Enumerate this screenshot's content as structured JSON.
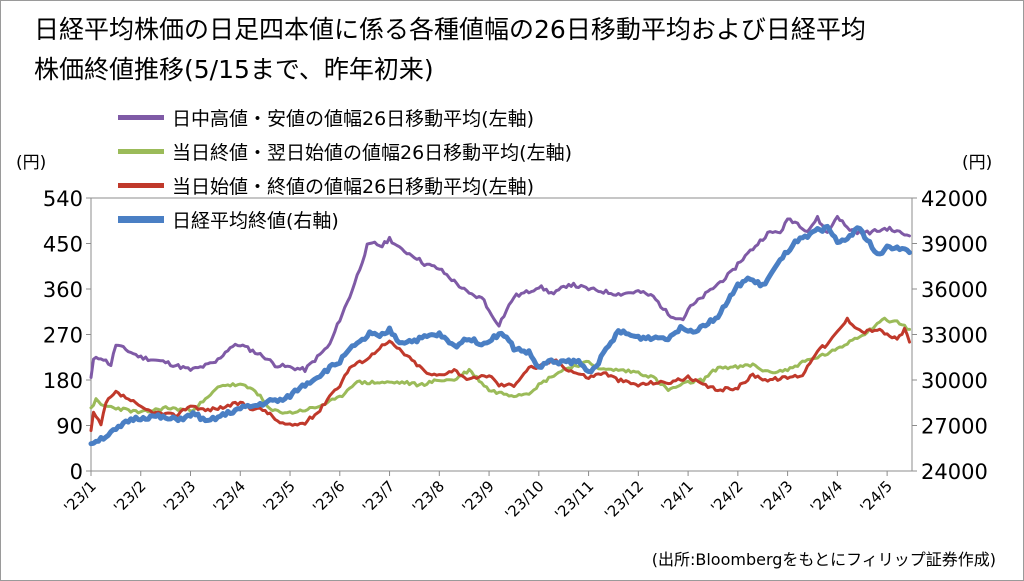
{
  "chart_data": {
    "type": "line",
    "title_line1": "日経平均株価の日足四本値に係る各種値幅の26日移動平均および日経平均",
    "title_line2": "株価終値推移(5/15まで、昨年初来)",
    "left_axis_unit": "(円)",
    "right_axis_unit": "(円)",
    "source": "(出所:Bloombergをもとにフィリップ証券作成)",
    "y_left": {
      "ticks": [
        "540",
        "450",
        "360",
        "270",
        "180",
        "90",
        "0"
      ],
      "lim": [
        0,
        540
      ]
    },
    "y_right": {
      "ticks": [
        "42000",
        "39000",
        "36000",
        "33000",
        "30000",
        "27000",
        "24000"
      ],
      "lim": [
        24000,
        42000
      ]
    },
    "x": {
      "lim": [
        1,
        17.5
      ],
      "tick_positions": [
        1,
        2,
        3,
        4,
        5,
        6,
        7,
        8,
        9,
        10,
        11,
        12,
        13,
        14,
        15,
        16,
        17
      ],
      "tick_labels": [
        "'23/1",
        "'23/2",
        "'23/3",
        "'23/4",
        "'23/5",
        "'23/6",
        "'23/7",
        "'23/8",
        "'23/9",
        "'23/10",
        "'23/11",
        "'23/12",
        "'24/1",
        "'24/2",
        "'24/3",
        "'24/4",
        "'24/5"
      ]
    },
    "grid": false,
    "legend_position": "top-left",
    "series": [
      {
        "name": "日中高値・安値の値幅26日移動平均(左軸)",
        "axis": "left",
        "color": "#7f5aa6",
        "x": [
          1.0,
          1.05,
          1.2,
          1.4,
          1.5,
          1.7,
          2.0,
          2.5,
          3.0,
          3.2,
          3.5,
          3.8,
          4.0,
          4.2,
          4.5,
          4.7,
          5.0,
          5.3,
          5.5,
          5.8,
          6.0,
          6.2,
          6.4,
          6.55,
          6.7,
          6.85,
          7.0,
          7.2,
          7.5,
          7.7,
          8.0,
          8.3,
          8.6,
          8.9,
          9.0,
          9.2,
          9.5,
          9.8,
          10.0,
          10.3,
          10.6,
          11.0,
          11.3,
          11.6,
          12.0,
          12.3,
          12.6,
          12.9,
          13.0,
          13.3,
          13.6,
          13.9,
          14.0,
          14.3,
          14.6,
          14.9,
          15.0,
          15.2,
          15.4,
          15.6,
          15.8,
          16.0,
          16.2,
          16.5,
          16.8,
          17.0,
          17.3,
          17.45
        ],
        "values": [
          185,
          220,
          225,
          210,
          250,
          240,
          225,
          215,
          200,
          205,
          215,
          245,
          250,
          240,
          225,
          210,
          205,
          200,
          220,
          250,
          300,
          345,
          400,
          445,
          450,
          445,
          460,
          440,
          425,
          410,
          400,
          375,
          350,
          340,
          315,
          290,
          345,
          355,
          365,
          350,
          370,
          360,
          355,
          350,
          355,
          345,
          310,
          300,
          320,
          345,
          370,
          395,
          410,
          440,
          470,
          475,
          500,
          490,
          475,
          500,
          470,
          505,
          480,
          470,
          475,
          480,
          470,
          465
        ]
      },
      {
        "name": "当日終値・翌日始値の値幅26日移動平均(左軸)",
        "axis": "left",
        "color": "#9bbb59",
        "x": [
          1.0,
          1.1,
          1.2,
          1.5,
          2.0,
          2.5,
          3.0,
          3.3,
          3.6,
          4.0,
          4.3,
          4.6,
          5.0,
          5.5,
          6.0,
          6.3,
          6.6,
          7.0,
          7.3,
          7.6,
          8.0,
          8.3,
          8.6,
          9.0,
          9.2,
          9.5,
          9.8,
          10.0,
          10.3,
          10.6,
          11.0,
          11.3,
          11.6,
          12.0,
          12.3,
          12.6,
          13.0,
          13.3,
          13.6,
          14.0,
          14.3,
          14.6,
          15.0,
          15.3,
          15.6,
          16.0,
          16.3,
          16.6,
          16.9,
          17.2,
          17.45
        ],
        "values": [
          125,
          140,
          130,
          125,
          115,
          125,
          120,
          140,
          170,
          170,
          160,
          120,
          115,
          125,
          145,
          175,
          175,
          175,
          175,
          170,
          180,
          180,
          200,
          160,
          155,
          150,
          155,
          170,
          190,
          205,
          215,
          200,
          200,
          195,
          185,
          160,
          175,
          180,
          205,
          205,
          210,
          195,
          200,
          215,
          225,
          240,
          260,
          275,
          300,
          295,
          280
        ]
      },
      {
        "name": "当日始値・終値の値幅26日移動平均(左軸)",
        "axis": "left",
        "color": "#c0392b",
        "x": [
          1.0,
          1.05,
          1.2,
          1.3,
          1.5,
          1.8,
          2.0,
          2.3,
          2.7,
          3.0,
          3.3,
          3.6,
          4.0,
          4.2,
          4.5,
          4.8,
          5.0,
          5.3,
          5.6,
          5.8,
          6.0,
          6.2,
          6.4,
          6.6,
          6.8,
          7.0,
          7.2,
          7.5,
          7.8,
          8.0,
          8.3,
          8.6,
          9.0,
          9.2,
          9.5,
          9.8,
          10.0,
          10.3,
          10.6,
          11.0,
          11.3,
          11.6,
          12.0,
          12.3,
          12.6,
          13.0,
          13.3,
          13.6,
          14.0,
          14.3,
          14.6,
          15.0,
          15.3,
          15.6,
          15.8,
          16.0,
          16.2,
          16.5,
          16.8,
          17.0,
          17.2,
          17.35,
          17.45
        ],
        "values": [
          80,
          115,
          90,
          135,
          155,
          140,
          125,
          115,
          110,
          130,
          120,
          125,
          135,
          125,
          120,
          95,
          90,
          95,
          120,
          150,
          170,
          205,
          215,
          225,
          245,
          255,
          240,
          215,
          190,
          190,
          200,
          180,
          190,
          170,
          170,
          205,
          205,
          220,
          200,
          185,
          195,
          180,
          170,
          175,
          175,
          185,
          170,
          160,
          165,
          190,
          180,
          185,
          190,
          240,
          250,
          275,
          300,
          275,
          280,
          270,
          260,
          280,
          255
        ]
      },
      {
        "name": "日経平均終値(右軸)",
        "axis": "right",
        "color": "#4a7fc4",
        "x": [
          1.0,
          1.1,
          1.3,
          1.5,
          1.8,
          2.0,
          2.3,
          2.6,
          2.9,
          3.1,
          3.3,
          3.6,
          3.9,
          4.1,
          4.3,
          4.6,
          4.9,
          5.2,
          5.5,
          5.8,
          6.0,
          6.15,
          6.3,
          6.5,
          6.6,
          6.8,
          7.0,
          7.2,
          7.5,
          7.8,
          8.0,
          8.3,
          8.6,
          8.9,
          9.1,
          9.3,
          9.5,
          9.8,
          10.0,
          10.2,
          10.5,
          10.8,
          11.0,
          11.2,
          11.4,
          11.6,
          11.8,
          12.0,
          12.3,
          12.6,
          12.9,
          13.1,
          13.3,
          13.6,
          13.9,
          14.0,
          14.2,
          14.5,
          14.8,
          15.0,
          15.2,
          15.4,
          15.6,
          15.8,
          16.0,
          16.2,
          16.4,
          16.6,
          16.8,
          17.0,
          17.2,
          17.45
        ],
        "values": [
          25800,
          26000,
          26300,
          26700,
          27400,
          27500,
          27600,
          27400,
          27500,
          27800,
          27200,
          27600,
          28000,
          28200,
          28300,
          28600,
          28700,
          29500,
          30100,
          30800,
          31200,
          32000,
          32200,
          32700,
          33100,
          32800,
          33300,
          32500,
          32600,
          32900,
          33000,
          32200,
          32800,
          32300,
          32900,
          33000,
          32100,
          31800,
          30800,
          31200,
          31200,
          31200,
          30500,
          31200,
          32200,
          33200,
          33000,
          32800,
          32800,
          32800,
          33500,
          33200,
          33600,
          34200,
          35700,
          36200,
          36700,
          36200,
          37600,
          38500,
          39200,
          39400,
          39900,
          40000,
          39100,
          39300,
          40100,
          39300,
          38200,
          38700,
          38800,
          38400
        ]
      }
    ]
  }
}
